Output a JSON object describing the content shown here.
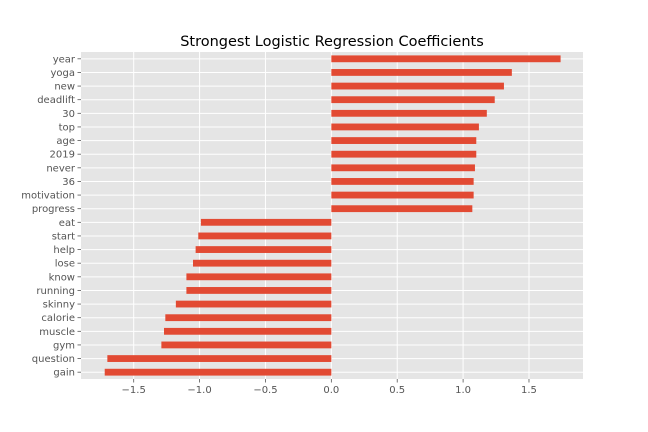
{
  "chart_data": {
    "type": "bar",
    "orientation": "horizontal",
    "title": "Strongest Logistic Regression Coefficients",
    "xlabel": "",
    "ylabel": "",
    "categories": [
      "year",
      "yoga",
      "new",
      "deadlift",
      "30",
      "top",
      "age",
      "2019",
      "never",
      "36",
      "motivation",
      "progress",
      "eat",
      "start",
      "help",
      "lose",
      "know",
      "running",
      "skinny",
      "calorie",
      "muscle",
      "gym",
      "question",
      "gain"
    ],
    "values": [
      1.74,
      1.37,
      1.31,
      1.24,
      1.18,
      1.12,
      1.1,
      1.1,
      1.09,
      1.08,
      1.08,
      1.07,
      -0.99,
      -1.01,
      -1.03,
      -1.05,
      -1.1,
      -1.1,
      -1.18,
      -1.26,
      -1.27,
      -1.29,
      -1.7,
      -1.72
    ],
    "xlim": [
      -1.9,
      1.91
    ],
    "xticks": [
      -1.5,
      -1.0,
      -0.5,
      0.0,
      0.5,
      1.0,
      1.5
    ],
    "xtick_labels": [
      "−1.5",
      "−1.0",
      "−0.5",
      "0.0",
      "0.5",
      "1.0",
      "1.5"
    ],
    "grid": true,
    "style": "ggplot",
    "colors": {
      "bar": "#E24A33",
      "background": "#E5E5E5",
      "grid": "#FFFFFF",
      "text": "#555555"
    }
  }
}
